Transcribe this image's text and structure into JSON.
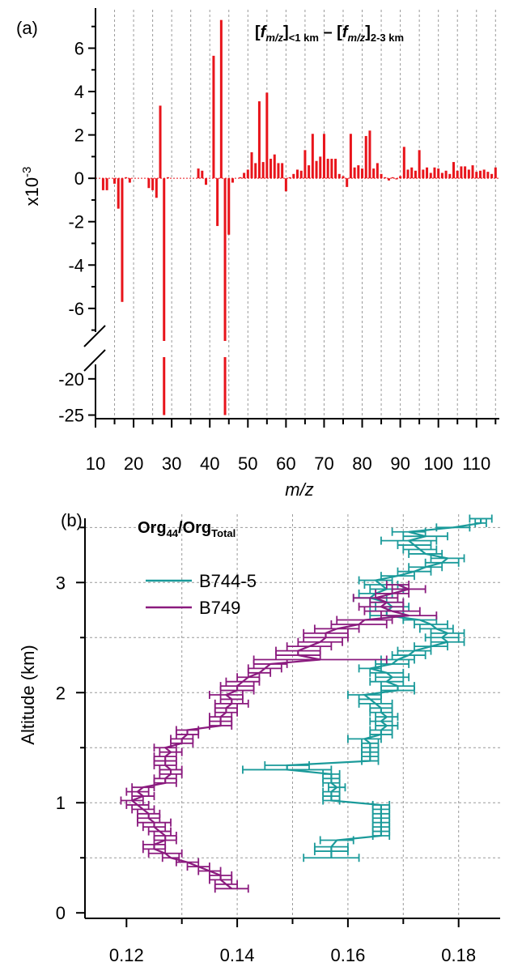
{
  "chart_data": [
    {
      "panel_label": "(a)",
      "type": "bar",
      "title_parts": {
        "bracket_open": "[",
        "f": "f",
        "mz": "m/z",
        "bracket_close": "]",
        "sub1": "<1 km",
        "minus": " – ",
        "sub2": "2-3 km"
      },
      "xlabel": "m/z",
      "ylabel": "x10",
      "ylabel_exponent": "-3",
      "xlim": [
        10,
        116
      ],
      "x_ticks": [
        "10",
        "20",
        "30",
        "40",
        "50",
        "60",
        "70",
        "80",
        "90",
        "100",
        "110"
      ],
      "upper_ylim": [
        -7.5,
        7.4
      ],
      "upper_y_ticks": [
        "6",
        "4",
        "2",
        "0",
        "-2",
        "-4",
        "-6"
      ],
      "lower_ylim": [
        -25.5,
        -17
      ],
      "lower_y_ticks": [
        "-20",
        "-25"
      ],
      "axis_break": true,
      "bar_color": "#e8141b",
      "x": [
        12,
        13,
        15,
        16,
        17,
        18,
        19,
        24,
        25,
        26,
        27,
        28,
        29,
        37,
        38,
        39,
        41,
        42,
        43,
        44,
        45,
        46,
        48,
        49,
        50,
        51,
        52,
        53,
        54,
        55,
        56,
        57,
        58,
        59,
        60,
        61,
        62,
        63,
        64,
        65,
        66,
        67,
        68,
        69,
        70,
        71,
        72,
        73,
        74,
        75,
        76,
        77,
        78,
        79,
        80,
        81,
        82,
        83,
        84,
        85,
        86,
        87,
        88,
        89,
        90,
        91,
        92,
        93,
        94,
        95,
        96,
        97,
        98,
        99,
        100,
        101,
        102,
        103,
        104,
        105,
        106,
        107,
        108,
        109,
        110,
        111,
        112,
        113,
        114,
        115
      ],
      "values": [
        -0.55,
        -0.55,
        -0.25,
        -1.4,
        -5.7,
        0.05,
        -0.2,
        -0.45,
        -0.55,
        -0.9,
        3.35,
        -25,
        0.05,
        0.45,
        0.35,
        -0.3,
        5.65,
        -2.2,
        7.3,
        -25,
        -2.6,
        -0.2,
        0.05,
        0.25,
        0.4,
        1.2,
        0.7,
        3.55,
        0.75,
        3.95,
        0.9,
        1.1,
        0.7,
        0.7,
        -0.6,
        0.05,
        0.2,
        0.4,
        0.35,
        1.3,
        0.6,
        2.05,
        0.8,
        1.0,
        2.05,
        0.9,
        0.9,
        0.9,
        0.2,
        0.1,
        -0.4,
        2.05,
        0.5,
        0.6,
        0.45,
        1.95,
        2.2,
        0.45,
        0.7,
        0.2,
        0.05,
        -0.1,
        0.05,
        -0.05,
        0.1,
        1.45,
        0.4,
        0.5,
        0.35,
        1.3,
        0.4,
        0.5,
        0.25,
        0.5,
        0.45,
        0.25,
        0.35,
        0.2,
        0.75,
        0.35,
        0.55,
        0.55,
        0.4,
        0.6,
        0.3,
        0.35,
        0.4,
        0.3,
        0.2,
        0.5
      ]
    },
    {
      "panel_label": "(b)",
      "type": "line",
      "title_parts": {
        "main": "Org",
        "sub1": "44",
        "slash": "/",
        "main2": "Org",
        "sub2": "Total"
      },
      "ylabel": "Altitude (km)",
      "xlim": [
        0.1125,
        0.1875
      ],
      "ylim": [
        -0.05,
        3.62
      ],
      "x_ticks": [
        0.12,
        0.14,
        0.16,
        0.18
      ],
      "x_tick_labels": [
        "0.12",
        "0.14",
        "0.16",
        "0.18"
      ],
      "y_ticks": [
        0,
        1,
        2,
        3
      ],
      "y_tick_labels": [
        "0",
        "1",
        "2",
        "3"
      ],
      "legend_placement": "upper-left",
      "series": [
        {
          "name": "B744-5",
          "color": "#1a9a9a",
          "points": [
            [
              0.157,
              0.5,
              0.005
            ],
            [
              0.157,
              0.56,
              0.003
            ],
            [
              0.157,
              0.6,
              0.003
            ],
            [
              0.158,
              0.66,
              0.003
            ],
            [
              0.166,
              0.7,
              0.0015
            ],
            [
              0.166,
              0.74,
              0.0015
            ],
            [
              0.166,
              0.78,
              0.0015
            ],
            [
              0.166,
              0.82,
              0.0015
            ],
            [
              0.166,
              0.86,
              0.0015
            ],
            [
              0.166,
              0.9,
              0.0015
            ],
            [
              0.166,
              0.94,
              0.0015
            ],
            [
              0.166,
              0.98,
              0.0015
            ],
            [
              0.157,
              1.02,
              0.0015
            ],
            [
              0.157,
              1.06,
              0.0015
            ],
            [
              0.157,
              1.1,
              0.0015
            ],
            [
              0.158,
              1.14,
              0.0015
            ],
            [
              0.157,
              1.18,
              0.0015
            ],
            [
              0.157,
              1.22,
              0.0015
            ],
            [
              0.157,
              1.26,
              0.0015
            ],
            [
              0.149,
              1.3,
              0.008
            ],
            [
              0.149,
              1.34,
              0.004
            ],
            [
              0.164,
              1.38,
              0.0015
            ],
            [
              0.164,
              1.42,
              0.0015
            ],
            [
              0.164,
              1.46,
              0.0015
            ],
            [
              0.164,
              1.5,
              0.0015
            ],
            [
              0.164,
              1.54,
              0.0015
            ],
            [
              0.163,
              1.58,
              0.003
            ],
            [
              0.166,
              1.62,
              0.002
            ],
            [
              0.166,
              1.66,
              0.002
            ],
            [
              0.167,
              1.7,
              0.002
            ],
            [
              0.166,
              1.74,
              0.002
            ],
            [
              0.167,
              1.78,
              0.002
            ],
            [
              0.166,
              1.82,
              0.002
            ],
            [
              0.166,
              1.86,
              0.002
            ],
            [
              0.165,
              1.9,
              0.003
            ],
            [
              0.164,
              1.94,
              0.002
            ],
            [
              0.163,
              1.98,
              0.003
            ],
            [
              0.169,
              2.02,
              0.003
            ],
            [
              0.169,
              2.06,
              0.003
            ],
            [
              0.167,
              2.1,
              0.003
            ],
            [
              0.168,
              2.14,
              0.003
            ],
            [
              0.167,
              2.18,
              0.003
            ],
            [
              0.164,
              2.22,
              0.002
            ],
            [
              0.168,
              2.26,
              0.003
            ],
            [
              0.169,
              2.3,
              0.003
            ],
            [
              0.171,
              2.34,
              0.003
            ],
            [
              0.172,
              2.38,
              0.003
            ],
            [
              0.175,
              2.42,
              0.003
            ],
            [
              0.178,
              2.46,
              0.003
            ],
            [
              0.177,
              2.5,
              0.003
            ],
            [
              0.178,
              2.54,
              0.003
            ],
            [
              0.176,
              2.58,
              0.003
            ],
            [
              0.175,
              2.62,
              0.003
            ],
            [
              0.173,
              2.66,
              0.003
            ],
            [
              0.167,
              2.7,
              0.003
            ],
            [
              0.167,
              2.74,
              0.003
            ],
            [
              0.168,
              2.78,
              0.003
            ],
            [
              0.167,
              2.82,
              0.003
            ],
            [
              0.164,
              2.86,
              0.003
            ],
            [
              0.165,
              2.9,
              0.003
            ],
            [
              0.167,
              2.94,
              0.003
            ],
            [
              0.166,
              2.98,
              0.003
            ],
            [
              0.165,
              3.02,
              0.003
            ],
            [
              0.169,
              3.06,
              0.003
            ],
            [
              0.172,
              3.1,
              0.003
            ],
            [
              0.174,
              3.14,
              0.003
            ],
            [
              0.177,
              3.18,
              0.003
            ],
            [
              0.178,
              3.22,
              0.003
            ],
            [
              0.174,
              3.26,
              0.003
            ],
            [
              0.173,
              3.3,
              0.003
            ],
            [
              0.172,
              3.34,
              0.003
            ],
            [
              0.171,
              3.38,
              0.005
            ],
            [
              0.174,
              3.42,
              0.004
            ],
            [
              0.171,
              3.46,
              0.003
            ],
            [
              0.179,
              3.5,
              0.003
            ],
            [
              0.184,
              3.54,
              0.001
            ],
            [
              0.184,
              3.58,
              0.002
            ]
          ]
        },
        {
          "name": "B749",
          "color": "#8a1a7e",
          "points": [
            [
              0.139,
              0.22,
              0.003
            ],
            [
              0.138,
              0.26,
              0.002
            ],
            [
              0.137,
              0.3,
              0.002
            ],
            [
              0.137,
              0.34,
              0.002
            ],
            [
              0.135,
              0.38,
              0.002
            ],
            [
              0.133,
              0.42,
              0.002
            ],
            [
              0.131,
              0.46,
              0.002
            ],
            [
              0.128,
              0.5,
              0.0015
            ],
            [
              0.127,
              0.54,
              0.003
            ],
            [
              0.125,
              0.58,
              0.002
            ],
            [
              0.125,
              0.62,
              0.002
            ],
            [
              0.127,
              0.66,
              0.002
            ],
            [
              0.127,
              0.7,
              0.002
            ],
            [
              0.126,
              0.74,
              0.002
            ],
            [
              0.125,
              0.78,
              0.002
            ],
            [
              0.125,
              0.82,
              0.003
            ],
            [
              0.124,
              0.86,
              0.002
            ],
            [
              0.124,
              0.9,
              0.002
            ],
            [
              0.123,
              0.94,
              0.002
            ],
            [
              0.122,
              0.98,
              0.002
            ],
            [
              0.121,
              1.02,
              0.002
            ],
            [
              0.123,
              1.06,
              0.002
            ],
            [
              0.122,
              1.1,
              0.002
            ],
            [
              0.123,
              1.14,
              0.002
            ],
            [
              0.127,
              1.18,
              0.002
            ],
            [
              0.127,
              1.22,
              0.002
            ],
            [
              0.128,
              1.26,
              0.002
            ],
            [
              0.128,
              1.3,
              0.002
            ],
            [
              0.127,
              1.34,
              0.002
            ],
            [
              0.127,
              1.38,
              0.002
            ],
            [
              0.127,
              1.42,
              0.002
            ],
            [
              0.128,
              1.46,
              0.002
            ],
            [
              0.127,
              1.5,
              0.002
            ],
            [
              0.13,
              1.54,
              0.002
            ],
            [
              0.13,
              1.58,
              0.002
            ],
            [
              0.131,
              1.62,
              0.002
            ],
            [
              0.131,
              1.66,
              0.002
            ],
            [
              0.137,
              1.7,
              0.002
            ],
            [
              0.137,
              1.74,
              0.002
            ],
            [
              0.137,
              1.78,
              0.002
            ],
            [
              0.138,
              1.82,
              0.002
            ],
            [
              0.138,
              1.86,
              0.002
            ],
            [
              0.139,
              1.9,
              0.003
            ],
            [
              0.139,
              1.94,
              0.002
            ],
            [
              0.138,
              1.98,
              0.003
            ],
            [
              0.14,
              2.02,
              0.003
            ],
            [
              0.14,
              2.06,
              0.003
            ],
            [
              0.141,
              2.1,
              0.003
            ],
            [
              0.142,
              2.14,
              0.002
            ],
            [
              0.144,
              2.18,
              0.002
            ],
            [
              0.145,
              2.22,
              0.003
            ],
            [
              0.146,
              2.26,
              0.003
            ],
            [
              0.155,
              2.3,
              0.012
            ],
            [
              0.151,
              2.34,
              0.004
            ],
            [
              0.151,
              2.38,
              0.004
            ],
            [
              0.153,
              2.42,
              0.004
            ],
            [
              0.155,
              2.46,
              0.004
            ],
            [
              0.156,
              2.5,
              0.004
            ],
            [
              0.156,
              2.54,
              0.004
            ],
            [
              0.158,
              2.58,
              0.004
            ],
            [
              0.162,
              2.62,
              0.005
            ],
            [
              0.163,
              2.66,
              0.005
            ],
            [
              0.171,
              2.7,
              0.005
            ],
            [
              0.168,
              2.74,
              0.005
            ],
            [
              0.166,
              2.78,
              0.004
            ],
            [
              0.167,
              2.82,
              0.003
            ],
            [
              0.165,
              2.86,
              0.004
            ],
            [
              0.168,
              2.9,
              0.003
            ],
            [
              0.171,
              2.94,
              0.003
            ],
            [
              0.169,
              2.98,
              0.002
            ]
          ]
        }
      ]
    }
  ]
}
